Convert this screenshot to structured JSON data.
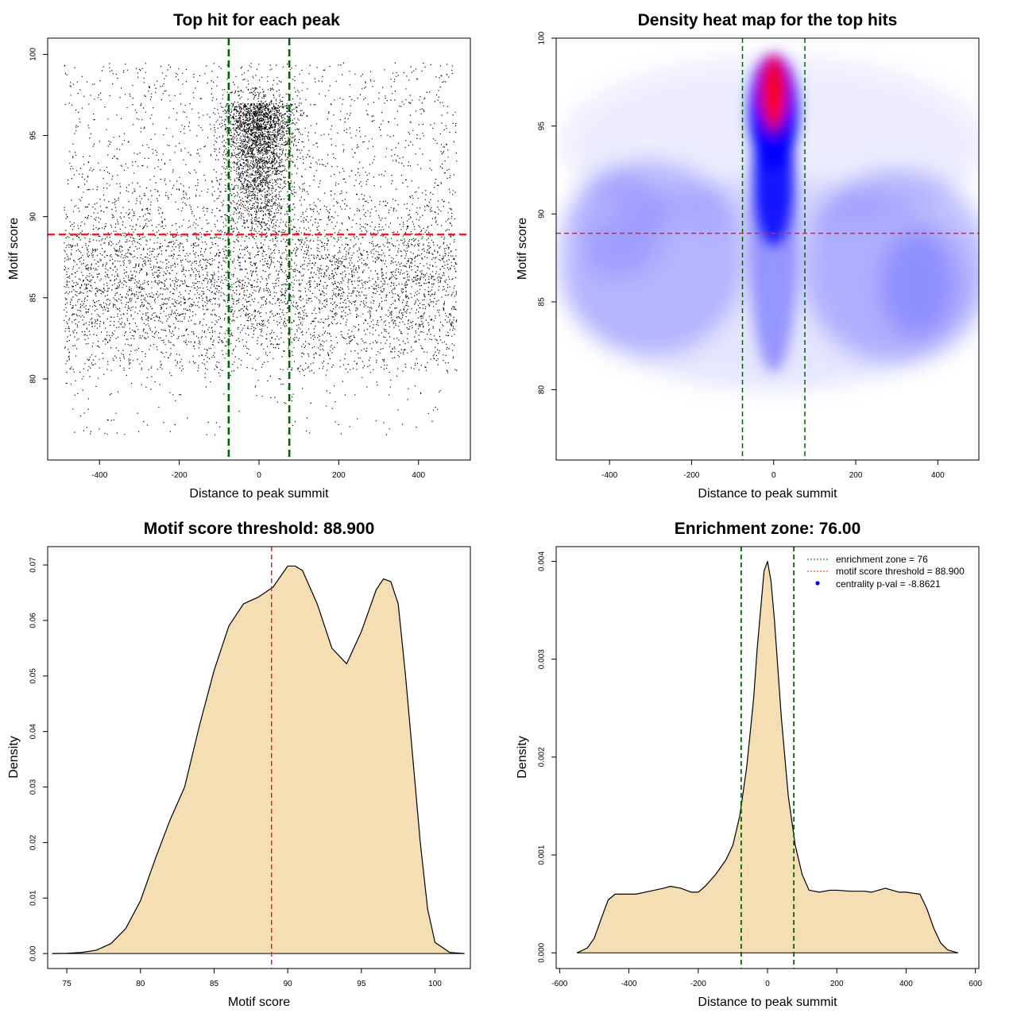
{
  "colors": {
    "zone_line": "#006400",
    "threshold_line": "#e8202a",
    "density_fill": "#f5deb3",
    "points": "#000000",
    "heat_low": "#ffffff",
    "heat_mid": "#0000ff",
    "heat_high": "#ff0000"
  },
  "chart_data": [
    {
      "type": "scatter",
      "title": "Top hit for each peak",
      "xlabel": "Distance to peak summit",
      "ylabel": "Motif score",
      "xlim": [
        -530,
        530
      ],
      "ylim": [
        75,
        101
      ],
      "xticks": [
        "-400",
        "-200",
        "0",
        "200",
        "400"
      ],
      "yticks": [
        "80",
        "85",
        "90",
        "95",
        "100"
      ],
      "vlines": [
        -76,
        76
      ],
      "hline": 88.9,
      "approx_points": 9000,
      "grid": false
    },
    {
      "type": "heatmap",
      "title": "Density heat map for the top hits",
      "xlabel": "Distance to peak summit",
      "ylabel": "Motif score",
      "xlim": [
        -530,
        500
      ],
      "ylim": [
        76,
        100
      ],
      "xticks": [
        "-400",
        "-200",
        "0",
        "200",
        "400"
      ],
      "yticks": [
        "80",
        "85",
        "90",
        "95",
        "100"
      ],
      "vlines": [
        -76,
        76
      ],
      "hline": 88.9,
      "peak": {
        "x": 0,
        "y": 97
      },
      "grid": false
    },
    {
      "type": "area",
      "title": "Motif score threshold: 88.900",
      "xlabel": "Motif score",
      "ylabel": "Density",
      "xlim": [
        73.7,
        102.4
      ],
      "ylim": [
        -0.0027,
        0.0733
      ],
      "xticks": [
        "75",
        "80",
        "85",
        "90",
        "95",
        "100"
      ],
      "yticks": [
        "0.00",
        "0.01",
        "0.02",
        "0.03",
        "0.04",
        "0.05",
        "0.06",
        "0.07"
      ],
      "vline": 88.9,
      "x": [
        74,
        75,
        76,
        77,
        78,
        79,
        80,
        81,
        82,
        83,
        84,
        85,
        86,
        87,
        88,
        89,
        90,
        90.5,
        91,
        92,
        93,
        94,
        95,
        96,
        96.5,
        97,
        97.5,
        98,
        98.5,
        99,
        99.5,
        100,
        101,
        102
      ],
      "y": [
        0,
        5e-05,
        0.0002,
        0.0006,
        0.0018,
        0.0045,
        0.0095,
        0.017,
        0.024,
        0.03,
        0.041,
        0.051,
        0.059,
        0.063,
        0.0642,
        0.066,
        0.0698,
        0.0698,
        0.069,
        0.063,
        0.055,
        0.0522,
        0.058,
        0.0655,
        0.0675,
        0.067,
        0.063,
        0.05,
        0.035,
        0.02,
        0.008,
        0.002,
        0.0002,
        0
      ],
      "grid": false
    },
    {
      "type": "area",
      "title": "Enrichment zone: 76.00",
      "xlabel": "Distance to peak summit",
      "ylabel": "Density",
      "xlim": [
        -610,
        610
      ],
      "ylim": [
        -0.00016,
        0.00415
      ],
      "xticks": [
        "-600",
        "-400",
        "-200",
        "0",
        "200",
        "400",
        "600"
      ],
      "yticks": [
        "0.000",
        "0.001",
        "0.002",
        "0.003",
        "0.004"
      ],
      "vlines": [
        -76,
        76
      ],
      "x": [
        -550,
        -520,
        -500,
        -480,
        -460,
        -440,
        -420,
        -380,
        -340,
        -300,
        -280,
        -250,
        -220,
        -200,
        -180,
        -150,
        -120,
        -100,
        -80,
        -60,
        -40,
        -30,
        -20,
        -10,
        0,
        10,
        20,
        30,
        40,
        60,
        80,
        100,
        120,
        150,
        180,
        200,
        240,
        280,
        300,
        340,
        360,
        380,
        400,
        440,
        460,
        480,
        500,
        520,
        550
      ],
      "y": [
        0,
        5e-05,
        0.00015,
        0.00035,
        0.00054,
        0.0006,
        0.0006,
        0.0006,
        0.00063,
        0.00066,
        0.00068,
        0.00066,
        0.00062,
        0.00062,
        0.00068,
        0.0008,
        0.00095,
        0.0011,
        0.0014,
        0.0019,
        0.0026,
        0.0031,
        0.0035,
        0.0039,
        0.004,
        0.0038,
        0.0034,
        0.0029,
        0.0024,
        0.0016,
        0.0011,
        0.0008,
        0.00064,
        0.00062,
        0.00064,
        0.00064,
        0.00063,
        0.00063,
        0.00062,
        0.00066,
        0.00064,
        0.00062,
        0.00062,
        0.0006,
        0.00045,
        0.00025,
        0.0001,
        3e-05,
        0
      ],
      "grid": false,
      "legend_position": "top-right",
      "legend": [
        "enrichment zone = 76",
        "motif score threshold = 88.900",
        "centrality p-val = -8.8621"
      ]
    }
  ]
}
